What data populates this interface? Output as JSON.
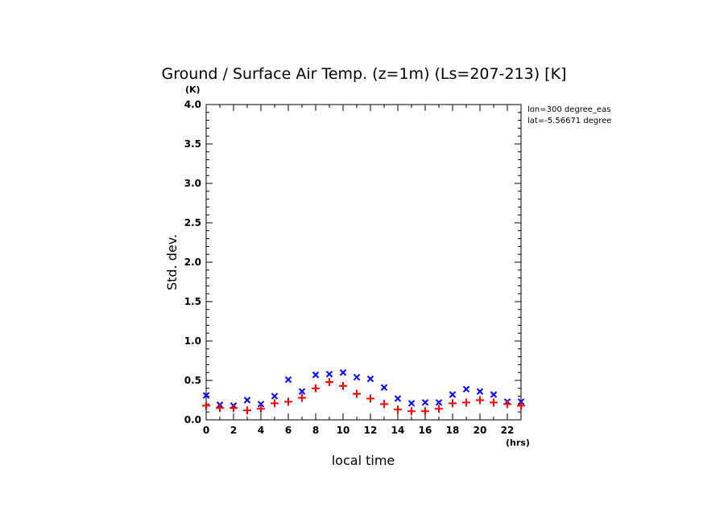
{
  "chart_data": {
    "type": "scatter",
    "title": "Ground / Surface Air Temp. (z=1m) (Ls=207-213) [K]",
    "xlabel": "local time",
    "ylabel": "Std. dev.",
    "x_unit": "(hrs)",
    "y_unit": "(K)",
    "xlim": [
      0,
      23
    ],
    "ylim": [
      0,
      4.0
    ],
    "x_ticks": [
      "0",
      "2",
      "4",
      "6",
      "8",
      "10",
      "12",
      "14",
      "16",
      "18",
      "20",
      "22"
    ],
    "y_ticks": [
      "0.0",
      "0.5",
      "1.0",
      "1.5",
      "2.0",
      "2.5",
      "3.0",
      "3.5",
      "4.0"
    ],
    "grid": false,
    "annotations": [
      "lon=300 degree_eas",
      "lat=-5.56671 degree"
    ],
    "x": [
      0,
      1,
      2,
      3,
      4,
      5,
      6,
      7,
      8,
      9,
      10,
      11,
      12,
      13,
      14,
      15,
      16,
      17,
      18,
      19,
      20,
      21,
      22,
      23
    ],
    "series": [
      {
        "marker": "x",
        "color": "#0000ff",
        "values": [
          0.31,
          0.19,
          0.18,
          0.25,
          0.2,
          0.3,
          0.51,
          0.36,
          0.57,
          0.58,
          0.6,
          0.54,
          0.52,
          0.41,
          0.27,
          0.21,
          0.22,
          0.22,
          0.32,
          0.39,
          0.36,
          0.32,
          0.23,
          0.23
        ]
      },
      {
        "marker": "+",
        "color": "#ff0000",
        "values": [
          0.18,
          0.15,
          0.15,
          0.12,
          0.14,
          0.21,
          0.23,
          0.28,
          0.4,
          0.48,
          0.43,
          0.33,
          0.27,
          0.2,
          0.13,
          0.11,
          0.11,
          0.14,
          0.21,
          0.22,
          0.25,
          0.22,
          0.2,
          0.18
        ]
      }
    ]
  }
}
